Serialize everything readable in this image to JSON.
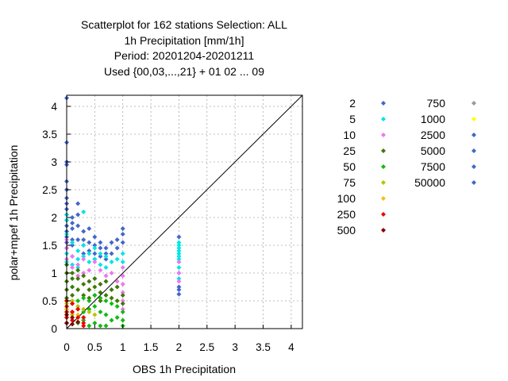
{
  "chart_data": {
    "type": "scatter",
    "title_lines": [
      "Scatterplot for  162 stations Selection: ALL",
      "1h Precipitation [mm/1h]",
      "Period: 20201204-20201211",
      "Used {00,03,...,21} + 01 02 ... 09"
    ],
    "xlabel": "OBS 1h Precipitation",
    "ylabel": "polar+mpef 1h Precipitation",
    "xlim": [
      0,
      4.2
    ],
    "ylim": [
      0,
      4.2
    ],
    "xticks": [
      "0",
      "0.5",
      "1",
      "1.5",
      "2",
      "2.5",
      "3",
      "3.5",
      "4"
    ],
    "yticks": [
      "0",
      "0.5",
      "1",
      "1.5",
      "2",
      "2.5",
      "3",
      "3.5",
      "4"
    ],
    "grid": true,
    "diagonal_line": true,
    "legend_position": "right",
    "legend": [
      {
        "label": "2",
        "color": "#4466cc"
      },
      {
        "label": "5",
        "color": "#00e5e5"
      },
      {
        "label": "10",
        "color": "#ee77ee"
      },
      {
        "label": "25",
        "color": "#3d7a00"
      },
      {
        "label": "50",
        "color": "#11bb11"
      },
      {
        "label": "75",
        "color": "#b8c400"
      },
      {
        "label": "100",
        "color": "#f0c020"
      },
      {
        "label": "250",
        "color": "#ee0000"
      },
      {
        "label": "500",
        "color": "#880000"
      },
      {
        "label": "750",
        "color": "#999999"
      },
      {
        "label": "1000",
        "color": "#ffff00"
      },
      {
        "label": "2500",
        "color": "#4466cc"
      },
      {
        "label": "5000",
        "color": "#4466cc"
      },
      {
        "label": "7500",
        "color": "#4466cc"
      },
      {
        "label": "50000",
        "color": "#4466cc"
      }
    ],
    "series": [
      {
        "color": "#4466cc",
        "x": [
          0,
          0,
          0,
          0,
          0,
          0,
          0,
          0,
          0,
          0,
          0,
          0,
          0,
          0,
          0,
          0,
          0.1,
          0.1,
          0.1,
          0.1,
          0.1,
          0.2,
          0.2,
          0.2,
          0.2,
          0.3,
          0.3,
          0.3,
          0.3,
          0.4,
          0.4,
          0.4,
          0.5,
          0.5,
          0.5,
          0.5,
          0.6,
          0.6,
          0.6,
          0.7,
          0.7,
          0.7,
          0.8,
          0.8,
          0.9,
          0.9,
          1,
          1,
          1,
          2,
          2,
          2,
          2
        ],
        "y": [
          4.15,
          3.35,
          3.0,
          2.95,
          2.65,
          2.5,
          2.35,
          2.25,
          2.15,
          2.05,
          1.95,
          1.85,
          1.75,
          1.65,
          1.55,
          1.45,
          2.0,
          1.9,
          1.8,
          1.6,
          1.5,
          2.25,
          2.05,
          1.85,
          1.6,
          1.75,
          1.6,
          1.5,
          1.35,
          1.8,
          1.55,
          1.4,
          1.65,
          1.5,
          1.35,
          1.25,
          1.55,
          1.45,
          1.3,
          1.45,
          1.35,
          1.25,
          1.55,
          1.35,
          1.6,
          1.45,
          1.8,
          1.7,
          1.55,
          1.65,
          0.75,
          0.7,
          0.62
        ]
      },
      {
        "color": "#00e5e5",
        "x": [
          0,
          0,
          0,
          0,
          0,
          0.1,
          0.1,
          0.1,
          0.2,
          0.2,
          0.2,
          0.3,
          0.3,
          0.3,
          0.4,
          0.4,
          0.5,
          0.5,
          0.6,
          0.6,
          0.7,
          0.7,
          0.8,
          0.9,
          1,
          1,
          2,
          2,
          2,
          2,
          2,
          2,
          2,
          2,
          2,
          2,
          2
        ],
        "y": [
          2.05,
          1.95,
          1.7,
          1.35,
          1.2,
          1.55,
          1.3,
          1.15,
          1.4,
          1.25,
          1.1,
          2.1,
          1.5,
          1.3,
          1.35,
          1.2,
          1.45,
          1.25,
          1.35,
          1.15,
          1.3,
          1.1,
          1.2,
          1.25,
          1.35,
          1.2,
          1.55,
          1.5,
          1.45,
          1.4,
          1.35,
          1.3,
          1.25,
          1.2,
          1.1,
          1.0,
          0.9
        ]
      },
      {
        "color": "#ee77ee",
        "x": [
          0,
          0,
          0,
          0.1,
          0.1,
          0.2,
          0.2,
          0.3,
          0.3,
          0.4,
          0.5,
          0.5,
          0.6,
          0.6,
          0.7,
          0.8,
          0.9,
          1,
          1,
          1,
          1,
          1,
          1,
          2,
          2,
          2
        ],
        "y": [
          1.6,
          1.45,
          1.25,
          1.3,
          1.1,
          1.15,
          0.95,
          1.25,
          1.0,
          1.05,
          1.2,
          0.9,
          1.05,
          0.8,
          0.95,
          1.0,
          0.85,
          1.1,
          0.95,
          0.8,
          0.65,
          0.5,
          0.35,
          1.2,
          1.0,
          0.85
        ]
      },
      {
        "color": "#3d7a00",
        "x": [
          0,
          0,
          0,
          0,
          0,
          0.1,
          0.1,
          0.1,
          0.1,
          0.2,
          0.2,
          0.2,
          0.3,
          0.3,
          0.3,
          0.4,
          0.4,
          0.4,
          0.5,
          0.5,
          0.5,
          0.6,
          0.6,
          0.6,
          0.7,
          0.7,
          0.8,
          0.8,
          0.9,
          0.9,
          1,
          1
        ],
        "y": [
          1.15,
          1.0,
          0.85,
          0.7,
          0.55,
          1.0,
          0.9,
          0.75,
          0.6,
          1.05,
          0.9,
          0.7,
          0.95,
          0.8,
          0.6,
          0.85,
          0.7,
          0.55,
          0.9,
          0.75,
          0.6,
          0.8,
          0.65,
          0.5,
          0.85,
          0.6,
          0.7,
          0.55,
          0.75,
          0.5,
          0.6,
          0.45
        ]
      },
      {
        "color": "#11bb11",
        "x": [
          0,
          0,
          0,
          0.1,
          0.1,
          0.1,
          0.2,
          0.2,
          0.2,
          0.3,
          0.3,
          0.3,
          0.4,
          0.4,
          0.4,
          0.5,
          0.5,
          0.5,
          0.6,
          0.6,
          0.6,
          0.7,
          0.7,
          0.7,
          0.8,
          0.8,
          0.9,
          0.9,
          1,
          1,
          1
        ],
        "y": [
          0.5,
          0.35,
          0.2,
          0.45,
          0.3,
          0.15,
          0.5,
          0.35,
          0.1,
          0.55,
          0.3,
          0.15,
          0.5,
          0.35,
          0.05,
          0.6,
          0.4,
          0.1,
          0.55,
          0.3,
          0.05,
          0.5,
          0.25,
          0.05,
          0.45,
          0.15,
          0.4,
          0.2,
          0.3,
          0.15,
          0.05
        ]
      },
      {
        "color": "#b8c400",
        "x": [
          0,
          0,
          0.1,
          0.1,
          0.2,
          0.2,
          0.3,
          0.4,
          0.5
        ],
        "y": [
          0.45,
          0.3,
          0.5,
          0.25,
          0.4,
          0.2,
          0.35,
          0.3,
          0.25
        ]
      },
      {
        "color": "#f0c020",
        "x": [
          0,
          0.1,
          0.2,
          0.3
        ],
        "y": [
          0.35,
          0.3,
          0.25,
          0.2
        ]
      },
      {
        "color": "#ee0000",
        "x": [
          0,
          0,
          0,
          0,
          0,
          0.1,
          0.1,
          0.1,
          0.2,
          0.2,
          0.3,
          0.3,
          0.3
        ],
        "y": [
          0.5,
          0.4,
          0.3,
          0.2,
          0.1,
          0.45,
          0.3,
          0.15,
          0.35,
          0.2,
          0.2,
          0.1,
          0.05
        ]
      },
      {
        "color": "#880000",
        "x": [
          0,
          0,
          0.1,
          0.1,
          0.2
        ],
        "y": [
          0.25,
          0.1,
          0.2,
          0.08,
          0.12
        ]
      }
    ]
  }
}
